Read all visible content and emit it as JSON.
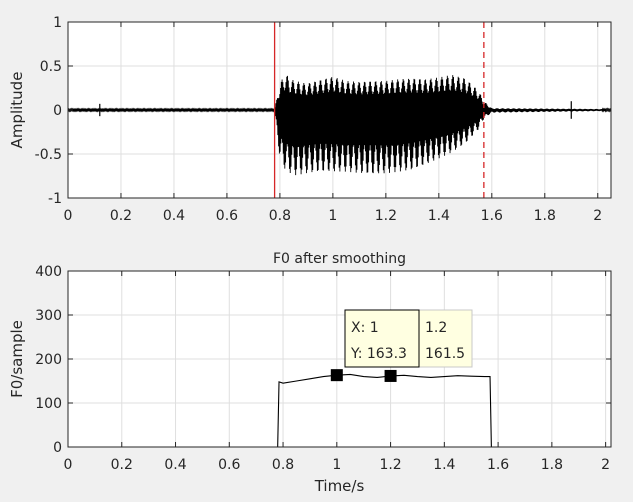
{
  "chart_data": [
    {
      "type": "line",
      "title": "",
      "xlabel": "",
      "ylabel": "Amplitude",
      "xlim": [
        0,
        2.05
      ],
      "ylim": [
        -1,
        1
      ],
      "xticks": [
        0,
        0.2,
        0.4,
        0.6,
        0.8,
        1,
        1.2,
        1.4,
        1.6,
        1.8,
        2
      ],
      "xtick_labels": [
        "0",
        "0.2",
        "0.4",
        "0.6",
        "0.8",
        "1",
        "1.2",
        "1.4",
        "1.6",
        "1.8",
        "2"
      ],
      "yticks": [
        -1,
        -0.5,
        0,
        0.5,
        1
      ],
      "ytick_labels": [
        "-1",
        "-0.5",
        "0",
        "0.5",
        "1"
      ],
      "grid": true,
      "colors": {
        "signal": "#000000",
        "start_marker": "#d62728",
        "end_marker": "#d62728"
      },
      "series": [
        {
          "style": "waveform",
          "envelope_x": [
            0,
            0.78,
            0.79,
            0.8,
            0.82,
            0.84,
            0.86,
            0.9,
            0.95,
            1.0,
            1.05,
            1.1,
            1.15,
            1.2,
            1.25,
            1.3,
            1.35,
            1.4,
            1.45,
            1.5,
            1.55,
            1.57,
            1.6,
            2.05
          ],
          "envelope_upper": [
            0.01,
            0.01,
            0.15,
            0.3,
            0.42,
            0.35,
            0.33,
            0.3,
            0.34,
            0.38,
            0.33,
            0.32,
            0.33,
            0.33,
            0.35,
            0.36,
            0.35,
            0.37,
            0.4,
            0.36,
            0.22,
            0.1,
            0.02,
            0.01
          ],
          "envelope_lower": [
            -0.01,
            -0.01,
            -0.3,
            -0.55,
            -0.68,
            -0.72,
            -0.74,
            -0.72,
            -0.7,
            -0.7,
            -0.7,
            -0.72,
            -0.73,
            -0.72,
            -0.7,
            -0.68,
            -0.62,
            -0.55,
            -0.48,
            -0.38,
            -0.22,
            -0.1,
            -0.03,
            -0.01
          ],
          "impulses": [
            {
              "x": 0.12,
              "amplitude": 0.07
            },
            {
              "x": 1.9,
              "amplitude": 0.1
            }
          ]
        }
      ],
      "vertical_lines": [
        {
          "x": 0.78,
          "style": "solid",
          "color": "#d62728"
        },
        {
          "x": 1.57,
          "style": "dashed",
          "color": "#d62728"
        }
      ]
    },
    {
      "type": "line",
      "title": "F0 after smoothing",
      "xlabel": "Time/s",
      "ylabel": "F0/sample",
      "xlim": [
        0,
        2.02
      ],
      "ylim": [
        0,
        400
      ],
      "xticks": [
        0,
        0.2,
        0.4,
        0.6,
        0.8,
        1,
        1.2,
        1.4,
        1.6,
        1.8,
        2
      ],
      "xtick_labels": [
        "0",
        "0.2",
        "0.4",
        "0.6",
        "0.8",
        "1",
        "1.2",
        "1.4",
        "1.6",
        "1.8",
        "2"
      ],
      "yticks": [
        0,
        100,
        200,
        300,
        400
      ],
      "ytick_labels": [
        "0",
        "100",
        "200",
        "300",
        "400"
      ],
      "grid": true,
      "series": [
        {
          "x": [
            0,
            0.78,
            0.785,
            0.8,
            0.85,
            0.9,
            0.95,
            1.0,
            1.05,
            1.1,
            1.15,
            1.2,
            1.25,
            1.3,
            1.35,
            1.4,
            1.45,
            1.5,
            1.55,
            1.57,
            1.575,
            2.02
          ],
          "y": [
            0,
            0,
            148,
            145,
            150,
            155,
            160,
            163.3,
            165,
            160,
            158,
            161.5,
            163,
            160,
            158,
            160,
            162,
            161,
            160,
            160,
            0,
            0
          ],
          "color": "#000000"
        }
      ],
      "datatips": [
        {
          "x": 1,
          "y": 163.3,
          "x_text": "X: 1",
          "y_text": "Y: 163.3",
          "active": true
        },
        {
          "x": 1.2,
          "y": 161.5,
          "x_text": "1.2",
          "y_text": "161.5",
          "active": false
        }
      ]
    }
  ]
}
